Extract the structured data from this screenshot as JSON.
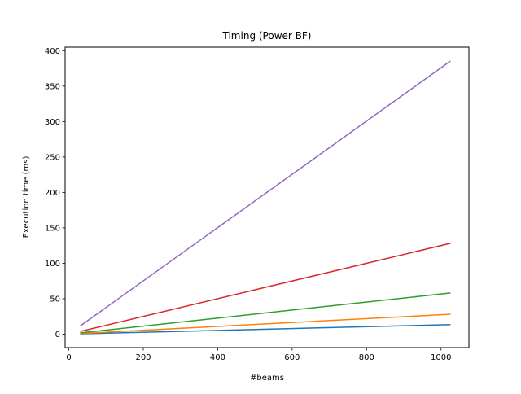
{
  "chart_data": {
    "type": "line",
    "title": "Timing (Power BF)",
    "xlabel": "#beams",
    "ylabel": "Execution time (ms)",
    "xlim": [
      -10,
      1075
    ],
    "ylim": [
      -19,
      405
    ],
    "xticks": [
      0,
      200,
      400,
      600,
      800,
      1000
    ],
    "yticks": [
      0,
      50,
      100,
      150,
      200,
      250,
      300,
      350,
      400
    ],
    "grid": false,
    "legend": "none",
    "x": [
      32,
      1024
    ],
    "series": [
      {
        "color": "#1f77b4",
        "values": [
          0.4,
          13.5
        ]
      },
      {
        "color": "#ff7f0e",
        "values": [
          0.9,
          28
        ]
      },
      {
        "color": "#2ca02c",
        "values": [
          1.8,
          58
        ]
      },
      {
        "color": "#d62728",
        "values": [
          4,
          128
        ]
      },
      {
        "color": "#9467bd",
        "values": [
          12,
          385
        ]
      }
    ]
  }
}
